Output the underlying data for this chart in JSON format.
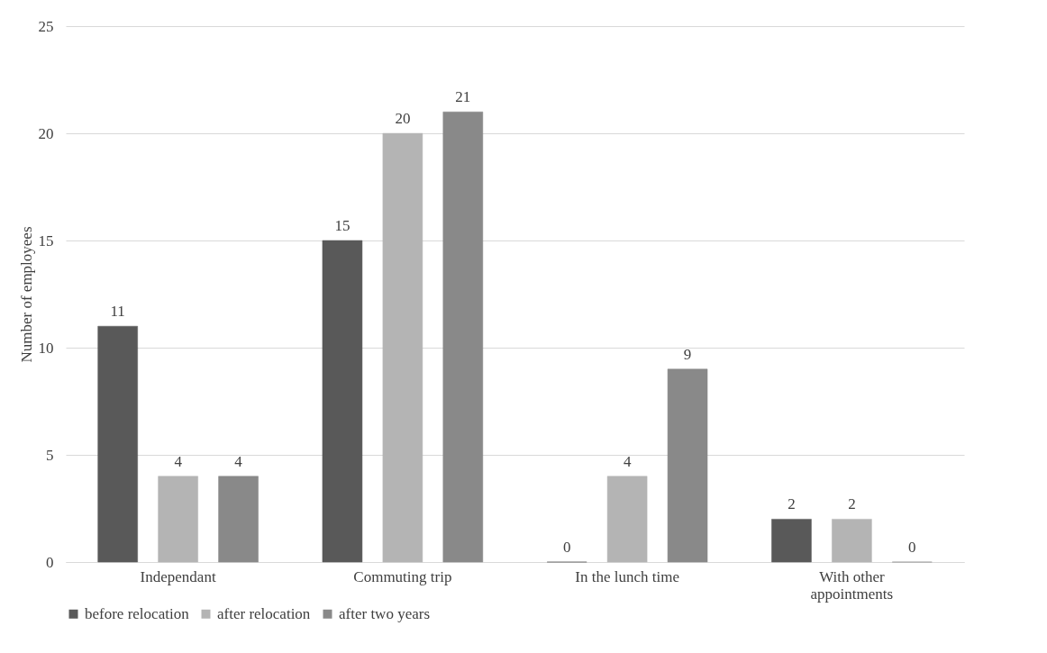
{
  "chart_data": {
    "type": "bar",
    "ylabel": "Number of employees",
    "categories": [
      "Independant",
      "Commuting trip",
      "In the lunch time",
      "With other appointments"
    ],
    "series": [
      {
        "name": "before relocation",
        "color": "#595959",
        "values": [
          11,
          15,
          0,
          2
        ]
      },
      {
        "name": "after relocation",
        "color": "#b4b4b4",
        "values": [
          4,
          20,
          4,
          2
        ]
      },
      {
        "name": "after two years",
        "color": "#898989",
        "values": [
          4,
          21,
          9,
          0
        ]
      }
    ],
    "ylim": [
      0,
      25
    ],
    "yticks": [
      0,
      5,
      10,
      15,
      20,
      25
    ],
    "grid": "y",
    "legend": "bottom",
    "data_labels": true
  }
}
